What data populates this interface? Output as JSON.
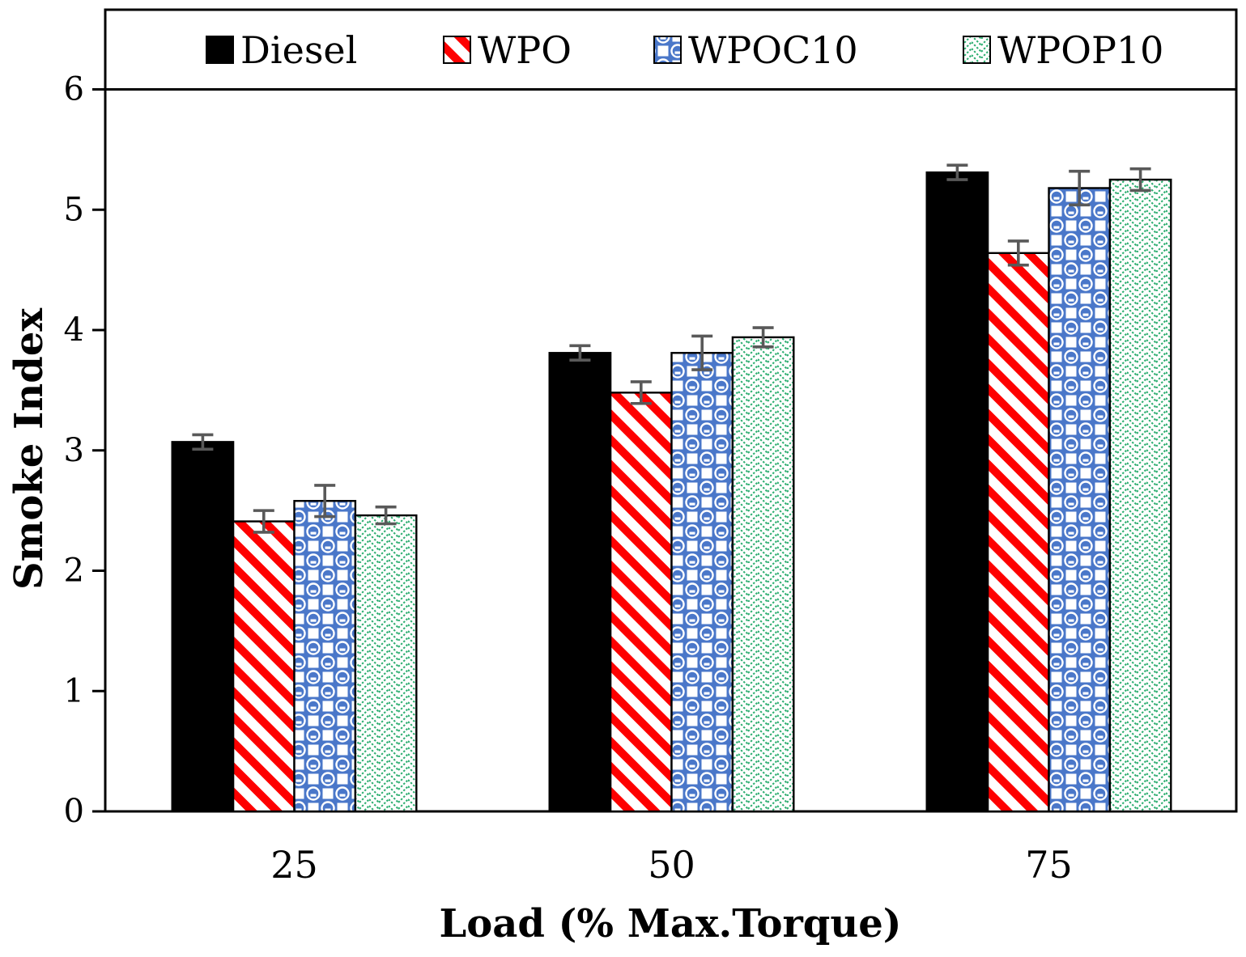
{
  "chart_data": {
    "type": "bar",
    "title": "",
    "xlabel": "Load (% Max.Torque)",
    "ylabel": "Smoke Index",
    "categories": [
      "25",
      "50",
      "75"
    ],
    "ylim": [
      0,
      6
    ],
    "yticks": [
      0,
      1,
      2,
      3,
      4,
      5,
      6
    ],
    "grid": false,
    "legend_position": "top",
    "series": [
      {
        "name": "Diesel",
        "fill": "solid",
        "color": "#000000",
        "values": [
          3.07,
          3.81,
          5.31
        ],
        "errors": [
          0.06,
          0.06,
          0.06
        ]
      },
      {
        "name": "WPO",
        "fill": "diagonal-stripes",
        "color": "#fe0000",
        "values": [
          2.41,
          3.48,
          4.64
        ],
        "errors": [
          0.09,
          0.09,
          0.1
        ]
      },
      {
        "name": "WPOC10",
        "fill": "spheres",
        "color": "#4a77c9",
        "values": [
          2.58,
          3.81,
          5.18
        ],
        "errors": [
          0.13,
          0.14,
          0.14
        ]
      },
      {
        "name": "WPOP10",
        "fill": "weave",
        "color": "#2bad6f",
        "values": [
          2.46,
          3.94,
          5.25
        ],
        "errors": [
          0.07,
          0.08,
          0.09
        ]
      }
    ],
    "error_bar_color": "#595959",
    "axis_color": "#000000",
    "bar_border_color": "#000000"
  }
}
